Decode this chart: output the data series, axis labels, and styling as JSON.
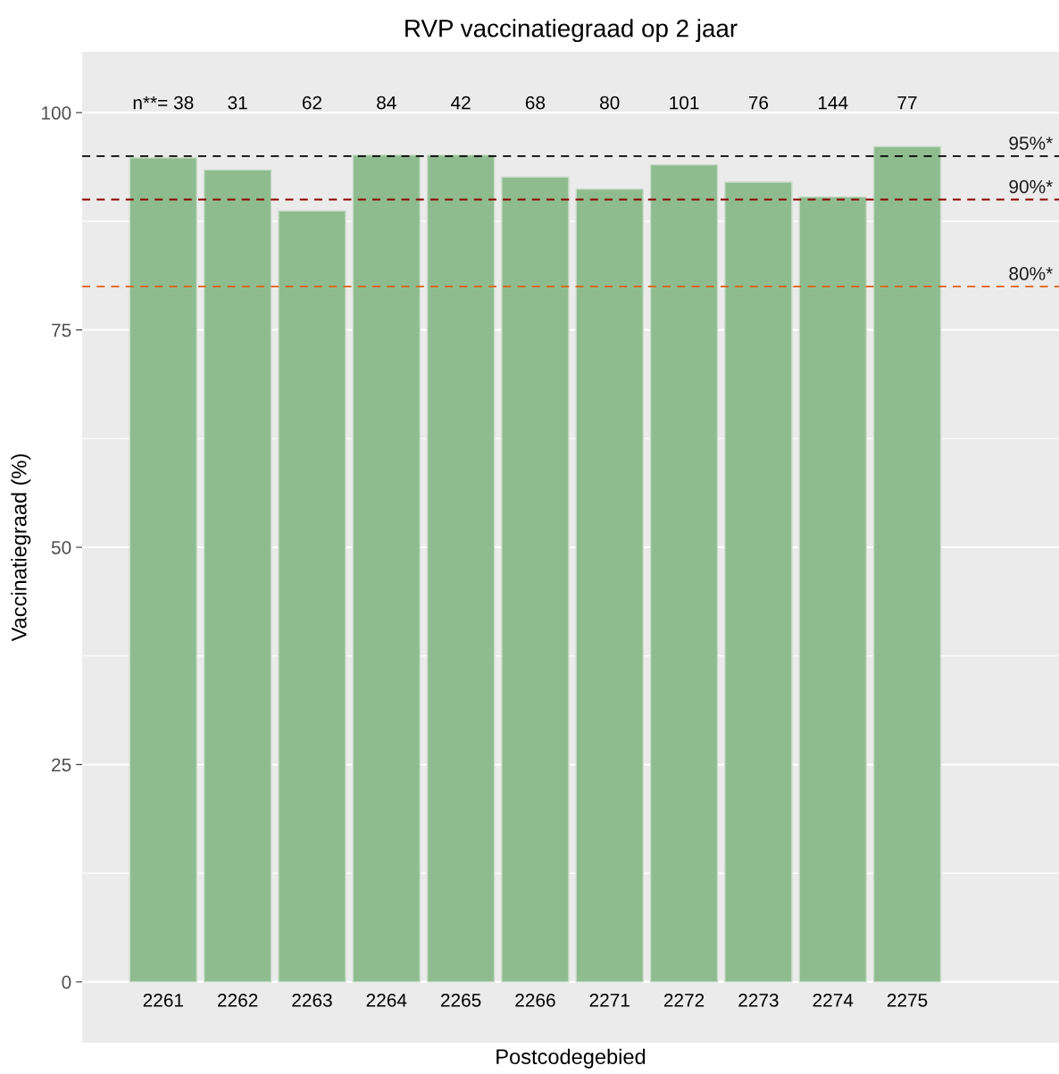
{
  "chart_data": {
    "type": "bar",
    "title": "RVP vaccinatiegraad op 2 jaar",
    "xlabel": "Postcodegebied",
    "ylabel": "Vaccinatiegraad (%)",
    "categories": [
      "2261",
      "2262",
      "2263",
      "2264",
      "2265",
      "2266",
      "2271",
      "2272",
      "2273",
      "2274",
      "2275"
    ],
    "values": [
      94.8,
      93.4,
      88.7,
      95.1,
      95.1,
      92.6,
      91.2,
      94.0,
      92.0,
      90.3,
      96.1
    ],
    "color": "#8fbc8f",
    "ylim": [
      -7,
      107
    ],
    "yticks": [
      0,
      25,
      50,
      75,
      100
    ],
    "grid": "y",
    "legend": false,
    "ref_lines": [
      {
        "axis": "y",
        "value": 95,
        "label": "95%*",
        "color": "#000000",
        "line_style": "dashed"
      },
      {
        "axis": "y",
        "value": 90,
        "label": "90%*",
        "color": "#8b0000",
        "line_style": "dashed"
      },
      {
        "axis": "y",
        "value": 80,
        "label": "80%*",
        "color": "#e06010",
        "line_style": "dashed"
      }
    ],
    "annotations": [
      "n**= 38",
      "31",
      "62",
      "84",
      "42",
      "68",
      "80",
      "101",
      "76",
      "144",
      "77"
    ]
  }
}
